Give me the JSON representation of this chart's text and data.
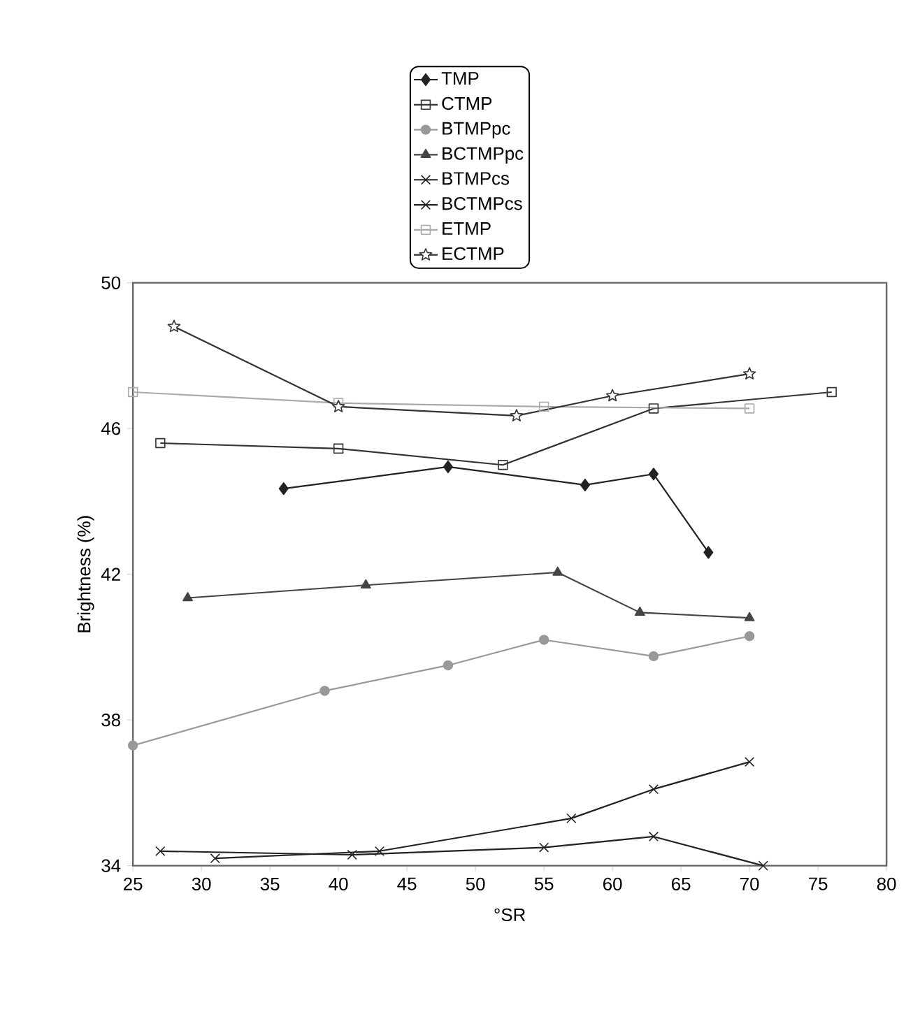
{
  "chart_data": {
    "type": "line",
    "xlabel": "°SR",
    "ylabel": "Brightness (%)",
    "xlim": [
      25,
      80
    ],
    "xticks": [
      25,
      30,
      35,
      40,
      45,
      50,
      55,
      60,
      65,
      70,
      75,
      80
    ],
    "ylim": [
      34,
      50
    ],
    "yticks": [
      34,
      38,
      42,
      46,
      50
    ],
    "grid": false,
    "legend": "top",
    "line_style": "solid",
    "series": [
      {
        "name": "TMP",
        "color": "#222222",
        "marker": "diamond",
        "x": [
          36,
          48,
          58,
          63,
          67
        ],
        "values": [
          44.35,
          44.95,
          44.45,
          44.75,
          42.6
        ]
      },
      {
        "name": "CTMP",
        "color": "#333333",
        "marker": "square",
        "x": [
          27,
          40,
          52,
          63,
          76
        ],
        "values": [
          45.6,
          45.45,
          45.0,
          46.55,
          47.0
        ]
      },
      {
        "name": "BTMPpc",
        "color": "#999999",
        "marker": "circle",
        "x": [
          25,
          39,
          48,
          55,
          63,
          70
        ],
        "values": [
          37.3,
          38.8,
          39.5,
          40.2,
          39.75,
          40.3
        ]
      },
      {
        "name": "BCTMPpc",
        "color": "#444444",
        "marker": "triangle",
        "x": [
          29,
          42,
          56,
          62,
          70
        ],
        "values": [
          41.35,
          41.7,
          42.05,
          40.95,
          40.8
        ]
      },
      {
        "name": "BTMPcs",
        "color": "#222222",
        "marker": "cross",
        "x": [
          31,
          43,
          57,
          63,
          70
        ],
        "values": [
          34.2,
          34.4,
          35.3,
          36.1,
          36.85
        ]
      },
      {
        "name": "BCTMPcs",
        "color": "#222222",
        "marker": "cross",
        "x": [
          27,
          41,
          55,
          63,
          71
        ],
        "values": [
          34.4,
          34.3,
          34.5,
          34.8,
          34.0
        ]
      },
      {
        "name": "ETMP",
        "color": "#aaaaaa",
        "marker": "square",
        "x": [
          25,
          40,
          55,
          70
        ],
        "values": [
          47.0,
          46.7,
          46.6,
          46.55
        ]
      },
      {
        "name": "ECTMP",
        "color": "#333333",
        "marker": "star",
        "x": [
          28,
          40,
          53,
          60,
          70
        ],
        "values": [
          48.8,
          46.6,
          46.35,
          46.9,
          47.5
        ]
      }
    ]
  }
}
